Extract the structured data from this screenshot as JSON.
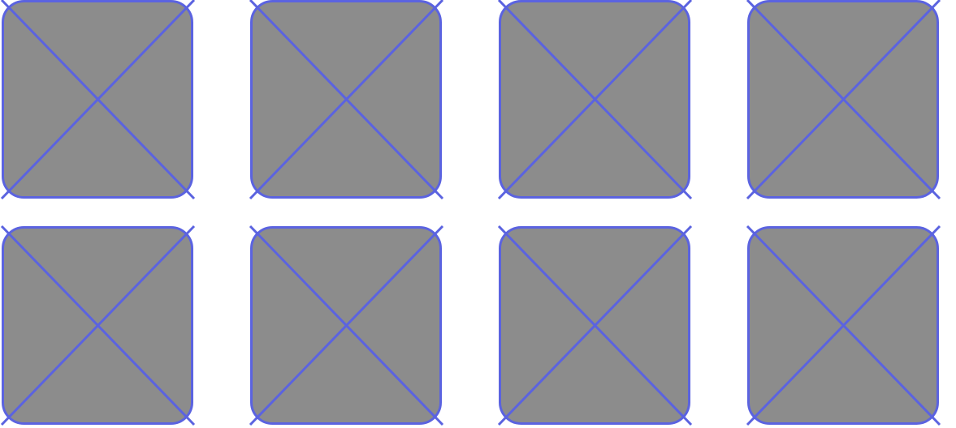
{
  "colors": {
    "fill": "#8c8c8c",
    "stroke": "#5b63e0",
    "background": "#ffffff"
  },
  "grid": {
    "rows": 2,
    "columns": 4,
    "items": [
      {
        "icon": "image-placeholder-icon"
      },
      {
        "icon": "image-placeholder-icon"
      },
      {
        "icon": "image-placeholder-icon"
      },
      {
        "icon": "image-placeholder-icon"
      },
      {
        "icon": "image-placeholder-icon"
      },
      {
        "icon": "image-placeholder-icon"
      },
      {
        "icon": "image-placeholder-icon"
      },
      {
        "icon": "image-placeholder-icon"
      }
    ]
  }
}
